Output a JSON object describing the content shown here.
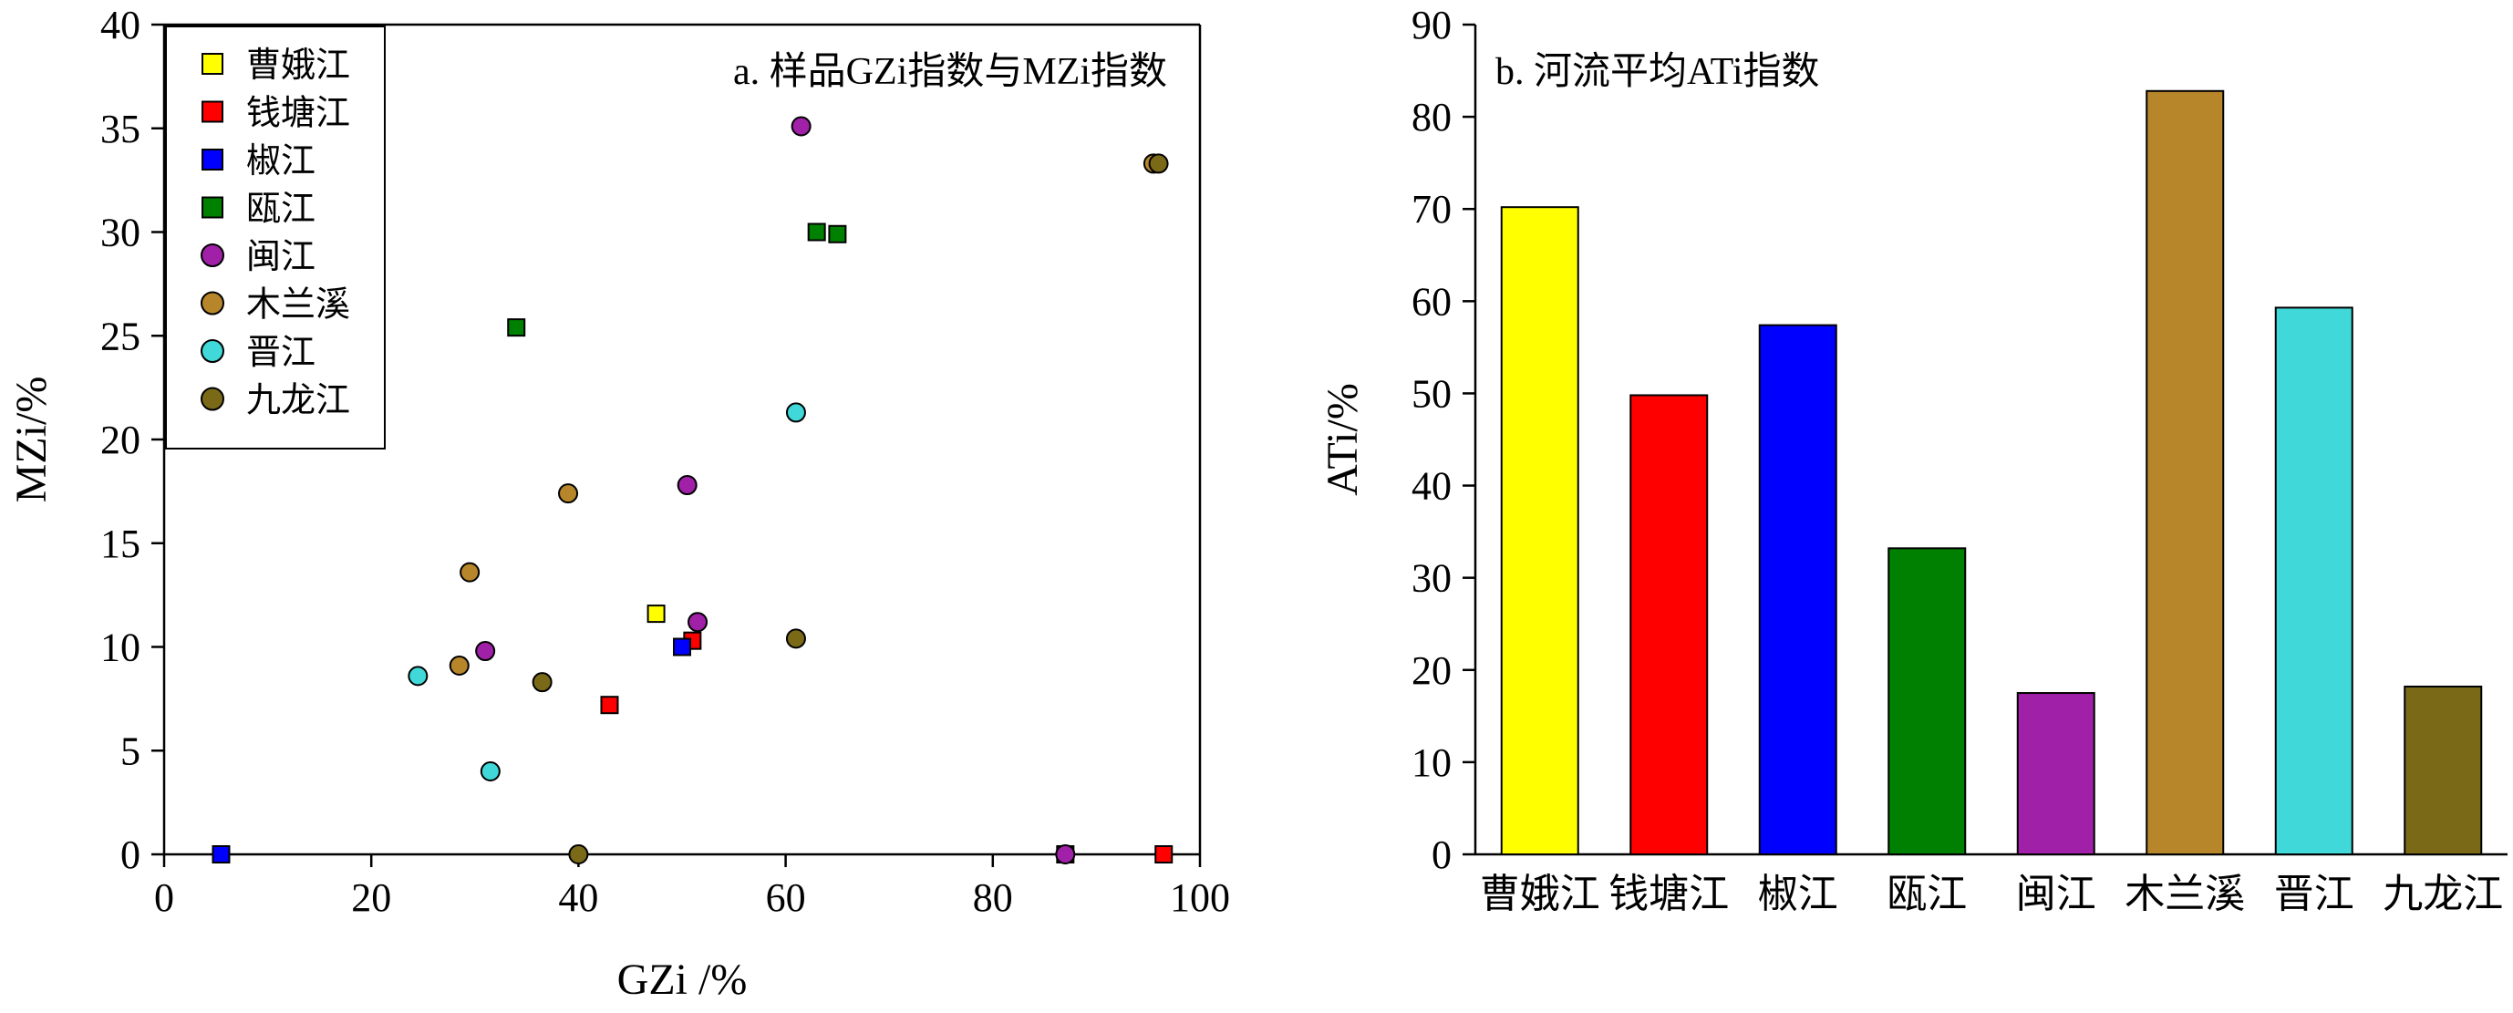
{
  "colors": {
    "曹娥江": "#ffff00",
    "钱塘江": "#ff0000",
    "椒江": "#0000ff",
    "瓯江": "#008000",
    "闽江": "#a020a8",
    "木兰溪": "#b8862a",
    "晋江": "#40d8d8",
    "九龙江": "#7a6a18"
  },
  "chart_data": [
    {
      "type": "scatter",
      "title": "a. 样品GZi指数与MZi指数",
      "xlabel": "GZi /%",
      "ylabel": "MZi/%",
      "xlim": [
        0,
        100
      ],
      "ylim": [
        0,
        40
      ],
      "xticks": [
        "0",
        "20",
        "40",
        "60",
        "80",
        "100"
      ],
      "yticks": [
        "0",
        "5",
        "10",
        "15",
        "20",
        "25",
        "30",
        "35",
        "40"
      ],
      "legend_position": "top-left",
      "series": [
        {
          "name": "曹娥江",
          "marker": "square",
          "points": [
            [
              47.5,
              11.6
            ]
          ]
        },
        {
          "name": "钱塘江",
          "marker": "square",
          "points": [
            [
              43.0,
              7.2
            ],
            [
              51.0,
              10.3
            ],
            [
              96.5,
              0.0
            ],
            [
              87.0,
              0.0
            ]
          ]
        },
        {
          "name": "椒江",
          "marker": "square",
          "points": [
            [
              5.5,
              0.0
            ],
            [
              50.0,
              10.0
            ]
          ]
        },
        {
          "name": "瓯江",
          "marker": "square",
          "points": [
            [
              34.0,
              25.4
            ],
            [
              63.0,
              30.0
            ],
            [
              65.0,
              29.9
            ]
          ]
        },
        {
          "name": "闽江",
          "marker": "circle",
          "points": [
            [
              61.5,
              35.1
            ],
            [
              50.5,
              17.8
            ],
            [
              51.5,
              11.2
            ],
            [
              31.0,
              9.8
            ],
            [
              87.0,
              0.0
            ]
          ]
        },
        {
          "name": "木兰溪",
          "marker": "circle",
          "points": [
            [
              39.0,
              17.4
            ],
            [
              29.5,
              13.6
            ],
            [
              28.5,
              9.1
            ],
            [
              95.5,
              33.3
            ]
          ]
        },
        {
          "name": "晋江",
          "marker": "circle",
          "points": [
            [
              61.0,
              21.3
            ],
            [
              24.5,
              8.6
            ],
            [
              31.5,
              4.0
            ]
          ]
        },
        {
          "name": "九龙江",
          "marker": "circle",
          "points": [
            [
              96.0,
              33.3
            ],
            [
              61.0,
              10.4
            ],
            [
              36.5,
              8.3
            ],
            [
              40.0,
              0.0
            ]
          ]
        }
      ]
    },
    {
      "type": "bar",
      "title": "b. 河流平均ATi指数",
      "xlabel": "",
      "ylabel": "ATi/%",
      "ylim": [
        0,
        90
      ],
      "yticks": [
        "0",
        "10",
        "20",
        "30",
        "40",
        "50",
        "60",
        "70",
        "80",
        "90"
      ],
      "categories": [
        "曹娥江",
        "钱塘江",
        "椒江",
        "瓯江",
        "闽江",
        "木兰溪",
        "晋江",
        "九龙江"
      ],
      "values": [
        70.2,
        49.8,
        57.4,
        33.2,
        17.5,
        82.8,
        59.3,
        18.2
      ]
    }
  ]
}
